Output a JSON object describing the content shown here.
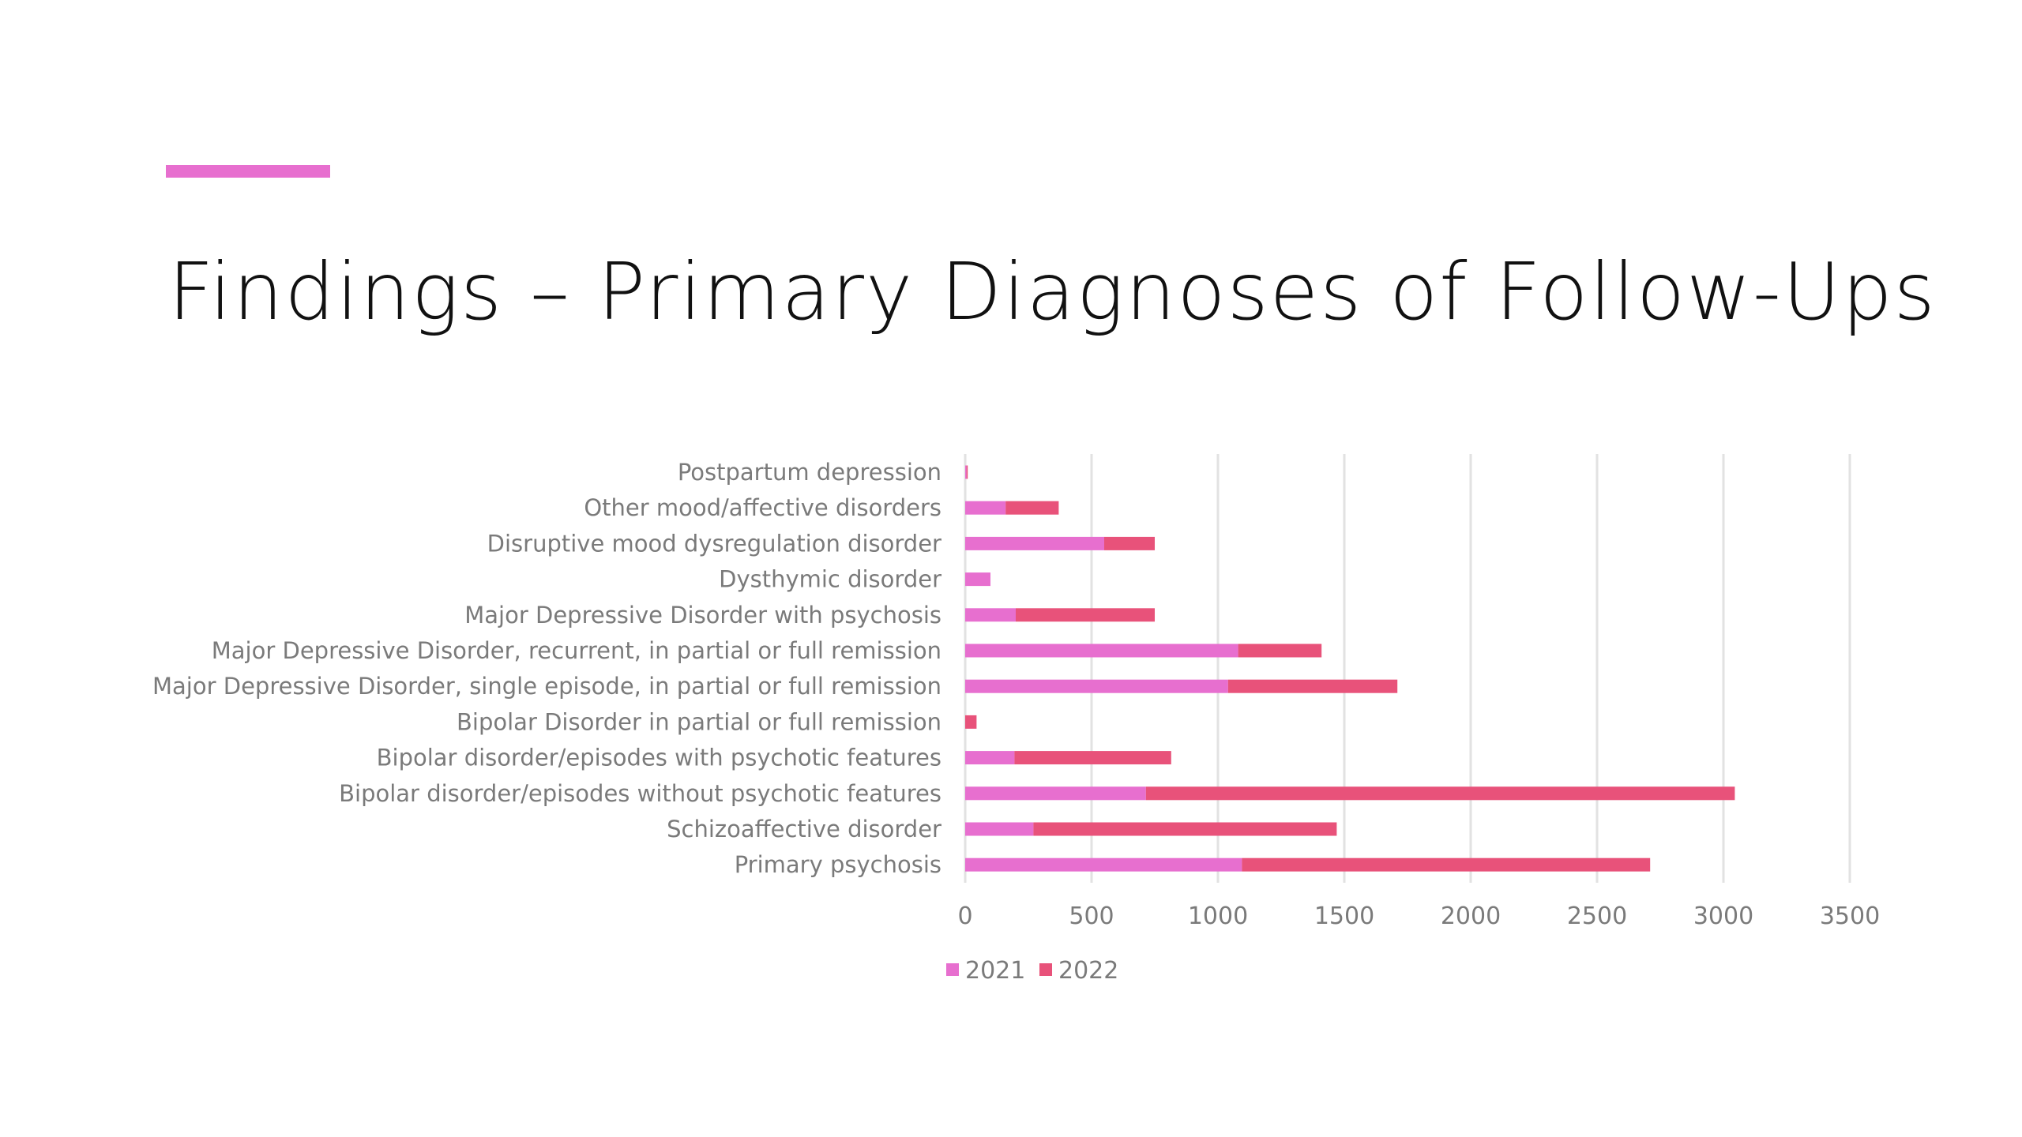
{
  "slide": {
    "title": "Findings – Primary Diagnoses of Follow-Ups"
  },
  "colors": {
    "accent": "#e76fcf",
    "series_2021": "#e76fcf",
    "series_2022": "#e8527a",
    "gridline": "#e2e2e2",
    "label_text": "#7a7a7a"
  },
  "chart_data": {
    "type": "bar",
    "orientation": "horizontal",
    "stacked": true,
    "title": "",
    "xlabel": "",
    "ylabel": "",
    "xlim": [
      0,
      3500
    ],
    "x_ticks": [
      "0",
      "500",
      "1000",
      "1500",
      "2000",
      "2500",
      "3000",
      "3500"
    ],
    "grid": "vertical",
    "legend_position": "bottom",
    "categories": [
      "Postpartum depression",
      "Other mood/affective disorders",
      "Disruptive mood dysregulation disorder",
      "Dysthymic disorder",
      "Major Depressive Disorder with psychosis",
      "Major Depressive Disorder, recurrent, in partial or full remission",
      "Major Depressive Disorder, single episode, in partial or full remission",
      "Bipolar Disorder in partial or full remission",
      "Bipolar disorder/episodes with psychotic features",
      "Bipolar disorder/episodes without psychotic features",
      "Schizoaffective disorder",
      "Primary psychosis"
    ],
    "series": [
      {
        "name": "2021",
        "values": [
          5,
          160,
          550,
          100,
          200,
          1080,
          1040,
          0,
          195,
          715,
          270,
          1095
        ]
      },
      {
        "name": "2022",
        "values": [
          5,
          210,
          200,
          0,
          550,
          330,
          670,
          45,
          620,
          2330,
          1200,
          1615
        ]
      }
    ]
  }
}
